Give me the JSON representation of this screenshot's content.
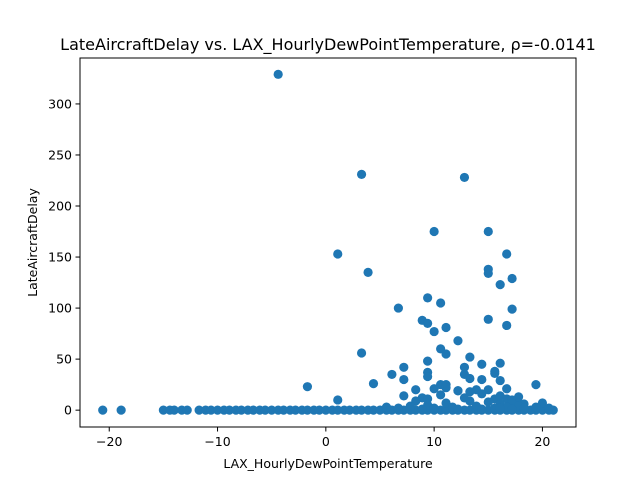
{
  "chart_data": {
    "type": "scatter",
    "title": "LateAircraftDelay vs. LAX_HourlyDewPointTemperature, ρ=-0.0141",
    "xlabel": "LAX_HourlyDewPointTemperature",
    "ylabel": "LateAircraftDelay",
    "xlim": [
      -22.7,
      23.1
    ],
    "ylim": [
      -16.5,
      345
    ],
    "xticks": [
      -20,
      -10,
      0,
      10,
      20
    ],
    "yticks": [
      0,
      50,
      100,
      150,
      200,
      250,
      300
    ],
    "grid": false,
    "legend": "none",
    "marker_color": "#1f77b4",
    "series": [
      {
        "x": [
          -20.6,
          -18.9,
          -15.0,
          -14.4,
          -14.0,
          -13.3,
          -12.8,
          -11.7,
          -11.1,
          -10.6,
          -10.0,
          -9.4,
          -8.9,
          -8.3,
          -7.8,
          -7.2,
          -6.7,
          -6.1,
          -5.6,
          -5.0,
          -4.4,
          -3.9,
          -3.3,
          -2.8,
          -2.2,
          -1.7,
          -1.1,
          -0.6,
          0.0,
          0.6,
          1.1,
          1.7,
          2.2,
          2.8,
          3.3,
          3.9,
          4.4,
          5.0,
          5.6,
          6.1,
          6.7,
          7.2,
          7.8,
          8.3,
          8.9,
          9.4,
          10.0,
          10.6,
          11.1,
          11.7,
          12.2,
          12.8,
          13.3,
          13.9,
          14.4,
          15.0,
          15.6,
          16.1,
          16.7,
          17.2,
          17.8,
          18.3,
          18.9,
          19.4,
          20.0,
          20.6,
          21.0,
          -4.4,
          3.3,
          12.8,
          1.1,
          3.9,
          10.0,
          15.0,
          16.7,
          15.0,
          15.0,
          17.2,
          16.1,
          9.4,
          10.6,
          17.2,
          6.7,
          8.9,
          15.0,
          9.4,
          16.7,
          11.1,
          10.0,
          12.2,
          10.6,
          3.3,
          11.1,
          13.3,
          9.4,
          14.4,
          12.8,
          16.1,
          7.2,
          15.6,
          9.4,
          12.8,
          13.3,
          15.6,
          14.4,
          16.1,
          4.4,
          6.1,
          7.2,
          9.4,
          10.6,
          11.1,
          12.2,
          13.9,
          15.0,
          16.7,
          19.4,
          -1.7,
          8.3,
          10.0,
          11.1,
          12.2,
          13.3,
          14.4,
          17.8,
          7.2,
          8.9,
          10.6,
          12.8,
          15.6,
          16.1,
          16.7,
          17.2,
          1.1,
          17.8,
          20.0,
          8.3,
          9.4,
          11.1,
          13.3,
          15.0,
          16.1,
          17.2,
          18.3,
          5.6,
          6.7,
          7.8,
          9.4,
          11.7,
          13.9,
          15.6,
          16.7,
          17.8,
          19.4,
          20.6,
          8.9,
          10.0,
          12.2,
          14.4,
          16.1,
          17.2,
          18.3
        ],
        "y": [
          0,
          0,
          0,
          0,
          0,
          0,
          0,
          0,
          0,
          0,
          0,
          0,
          0,
          0,
          0,
          0,
          0,
          0,
          0,
          0,
          0,
          0,
          0,
          0,
          0,
          0,
          0,
          0,
          0,
          0,
          0,
          0,
          0,
          0,
          0,
          0,
          0,
          0,
          0,
          0,
          0,
          0,
          0,
          0,
          0,
          0,
          0,
          0,
          0,
          0,
          0,
          0,
          0,
          0,
          0,
          0,
          0,
          0,
          0,
          0,
          0,
          0,
          0,
          0,
          0,
          0,
          0,
          329,
          231,
          228,
          153,
          135,
          175,
          175,
          153,
          138,
          134,
          129,
          123,
          110,
          105,
          99,
          100,
          88,
          89,
          85,
          83,
          81,
          77,
          68,
          60,
          56,
          55,
          52,
          48,
          45,
          42,
          46,
          42,
          38,
          37,
          35,
          31,
          36,
          30,
          29,
          26,
          35,
          30,
          33,
          25,
          25,
          19,
          20,
          20,
          21,
          25,
          23,
          20,
          21,
          22,
          19,
          18,
          16,
          13,
          14,
          12,
          15,
          12,
          11,
          14,
          11,
          10,
          10,
          7,
          7,
          9,
          11,
          7,
          9,
          8,
          6,
          7,
          6,
          3,
          2,
          4,
          5,
          3,
          4,
          2,
          3,
          4,
          3,
          2,
          1,
          2,
          1,
          1,
          2,
          1,
          2
        ]
      }
    ]
  }
}
